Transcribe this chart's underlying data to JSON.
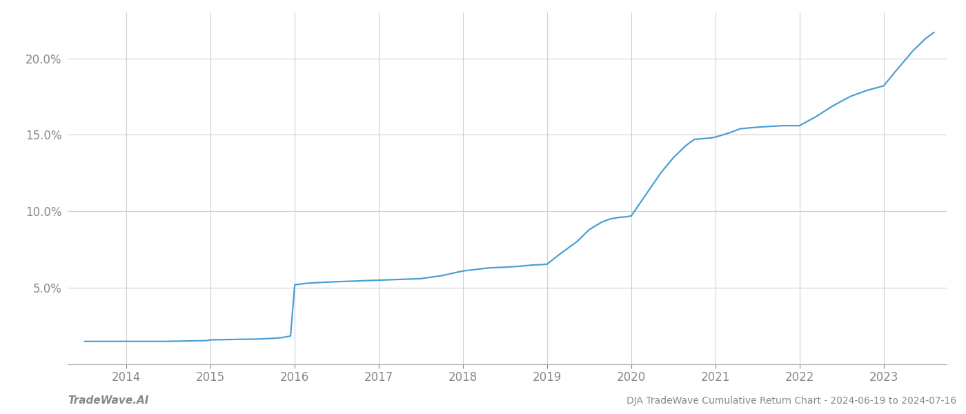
{
  "title": "DJA TradeWave Cumulative Return Chart - 2024-06-19 to 2024-07-16",
  "watermark": "TradeWave.AI",
  "line_color": "#4a9fd4",
  "background_color": "#ffffff",
  "grid_color": "#d0d0d0",
  "x_values": [
    2013.5,
    2014.0,
    2014.47,
    2014.95,
    2015.0,
    2015.55,
    2015.75,
    2015.85,
    2015.95,
    2016.0,
    2016.15,
    2016.3,
    2016.5,
    2016.75,
    2017.0,
    2017.25,
    2017.5,
    2017.75,
    2018.0,
    2018.15,
    2018.3,
    2018.5,
    2018.65,
    2018.75,
    2018.85,
    2018.95,
    2019.0,
    2019.15,
    2019.35,
    2019.5,
    2019.65,
    2019.75,
    2019.85,
    2019.95,
    2020.0,
    2020.1,
    2020.2,
    2020.35,
    2020.5,
    2020.65,
    2020.75,
    2020.85,
    2020.95,
    2021.0,
    2021.15,
    2021.3,
    2021.5,
    2021.65,
    2021.8,
    2022.0,
    2022.2,
    2022.4,
    2022.6,
    2022.8,
    2023.0,
    2023.15,
    2023.35,
    2023.5,
    2023.6
  ],
  "y_values": [
    1.5,
    1.5,
    1.5,
    1.55,
    1.6,
    1.65,
    1.7,
    1.75,
    1.85,
    5.2,
    5.3,
    5.35,
    5.4,
    5.45,
    5.5,
    5.55,
    5.6,
    5.8,
    6.1,
    6.2,
    6.3,
    6.35,
    6.4,
    6.45,
    6.5,
    6.52,
    6.55,
    7.2,
    8.0,
    8.8,
    9.3,
    9.5,
    9.6,
    9.65,
    9.7,
    10.5,
    11.3,
    12.5,
    13.5,
    14.3,
    14.7,
    14.75,
    14.8,
    14.85,
    15.1,
    15.4,
    15.5,
    15.55,
    15.6,
    15.6,
    16.2,
    16.9,
    17.5,
    17.9,
    18.2,
    19.2,
    20.5,
    21.3,
    21.7
  ],
  "xlim": [
    2013.3,
    2023.75
  ],
  "ylim": [
    0,
    23
  ],
  "yticks": [
    5.0,
    10.0,
    15.0,
    20.0
  ],
  "xticks": [
    2014,
    2015,
    2016,
    2017,
    2018,
    2019,
    2020,
    2021,
    2022,
    2023
  ],
  "tick_label_fontsize": 12,
  "tick_color": "#888888",
  "title_fontsize": 10,
  "watermark_fontsize": 11,
  "line_width": 1.6
}
